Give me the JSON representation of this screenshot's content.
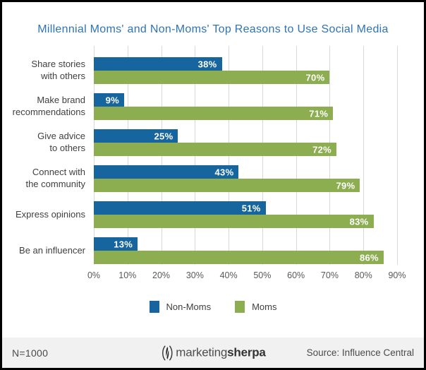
{
  "chart_data": {
    "type": "bar",
    "orientation": "horizontal",
    "title": "Millennial Moms' and Non-Moms' Top Reasons to Use Social Media",
    "categories": [
      "Share stories\nwith others",
      "Make brand\nrecommendations",
      "Give advice\nto others",
      "Connect with\nthe community",
      "Express opinions",
      "Be an influencer"
    ],
    "series": [
      {
        "name": "Non-Moms",
        "color": "#16659E",
        "values": [
          38,
          9,
          25,
          43,
          51,
          13
        ]
      },
      {
        "name": "Moms",
        "color": "#8DAD51",
        "values": [
          70,
          71,
          72,
          79,
          83,
          86
        ]
      }
    ],
    "value_suffix": "%",
    "xlim": [
      0,
      90
    ],
    "x_ticks": [
      "0%",
      "10%",
      "20%",
      "30%",
      "40%",
      "50%",
      "60%",
      "70%",
      "80%",
      "90%"
    ],
    "grid": true,
    "legend_position": "bottom"
  },
  "colors": {
    "non_moms_blue": "#16659E",
    "moms_green": "#8DAD51",
    "title_blue": "#2E74B5",
    "gridline_gray": "#D8D8D8",
    "axis_text_gray": "#595959",
    "label_text_gray": "#3F3F3F",
    "footer_background": "#F1F1F1",
    "frame_border": "#000000"
  },
  "footer": {
    "sample_size": "N=1000",
    "logo_text_regular": "marketing",
    "logo_text_bold": "sherpa",
    "source": "Source: Influence Central"
  }
}
